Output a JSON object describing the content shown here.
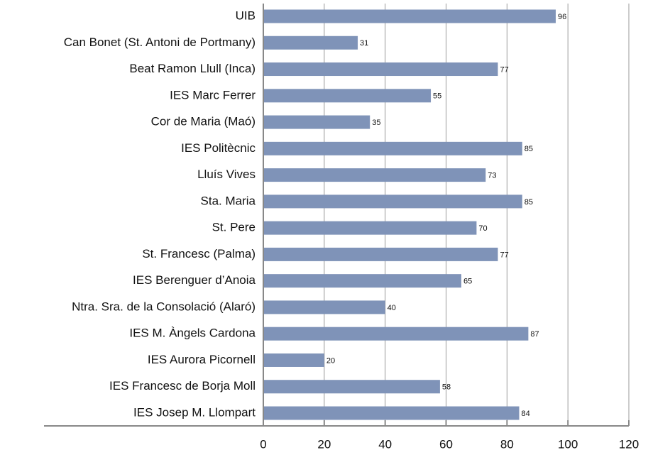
{
  "chart_data": {
    "type": "barh",
    "categories": [
      "UIB",
      "Can Bonet (St. Antoni de Portmany)",
      "Beat Ramon Llull (Inca)",
      "IES Marc Ferrer",
      "Cor de Maria (Maó)",
      "IES Politècnic",
      "Lluís Vives",
      "Sta. Maria",
      "St. Pere",
      "St. Francesc (Palma)",
      "IES Berenguer d’Anoia",
      "Ntra. Sra. de la Consolació (Alaró)",
      "IES M. Àngels Cardona",
      "IES Aurora Picornell",
      "IES Francesc de Borja Moll",
      "IES Josep M. Llompart"
    ],
    "values": [
      96,
      31,
      77,
      55,
      35,
      85,
      73,
      85,
      70,
      77,
      65,
      40,
      87,
      20,
      58,
      84
    ],
    "color": "#7f93b8",
    "xlim": [
      0,
      120
    ],
    "xticks": [
      0,
      20,
      40,
      60,
      80,
      100,
      120
    ],
    "grid": true
  }
}
